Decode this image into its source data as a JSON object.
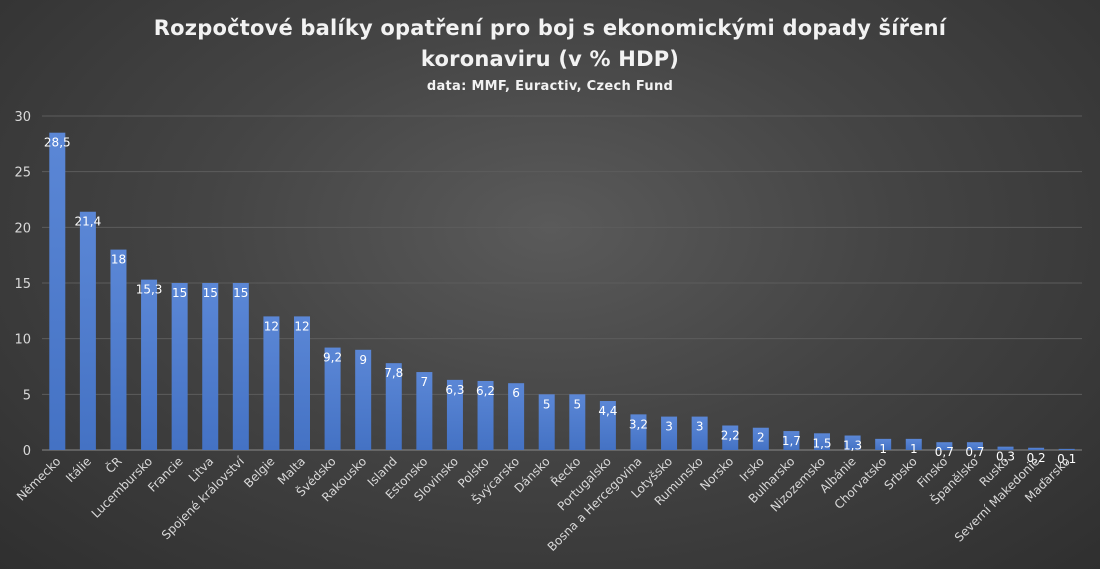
{
  "chart_data": {
    "type": "bar",
    "title_line1": "Rozpočtové balíky opatření pro boj s ekonomickými dopady šíření",
    "title_line2": "koronaviru (v % HDP)",
    "subtitle": "data: MMF, Euractiv, Czech Fund",
    "xlabel": "",
    "ylabel": "",
    "ylim": [
      0,
      30
    ],
    "yticks": [
      0,
      5,
      10,
      15,
      20,
      25,
      30
    ],
    "grid": true,
    "legend": "none",
    "bar_color": "#4472c4",
    "categories": [
      "Německo",
      "Itálie",
      "ČR",
      "Lucembursko",
      "Francie",
      "Litva",
      "Spojené království",
      "Belgie",
      "Malta",
      "Švédsko",
      "Rakousko",
      "Island",
      "Estonsko",
      "Slovinsko",
      "Polsko",
      "Švýcarsko",
      "Dánsko",
      "Řecko",
      "Portugalsko",
      "Bosna a Hercegovina",
      "Lotyšsko",
      "Rumunsko",
      "Norsko",
      "Irsko",
      "Bulharsko",
      "Nizozemsko",
      "Albánie",
      "Chorvatsko",
      "Srbsko",
      "Finsko",
      "Španělsko",
      "Rusko",
      "Severní Makedonie",
      "Maďarsko"
    ],
    "values": [
      28.5,
      21.4,
      18,
      15.3,
      15,
      15,
      15,
      12,
      12,
      9.2,
      9,
      7.8,
      7,
      6.3,
      6.2,
      6,
      5,
      5,
      4.4,
      3.2,
      3,
      3,
      2.2,
      2,
      1.7,
      1.5,
      1.3,
      1,
      1,
      0.7,
      0.7,
      0.3,
      0.2,
      0.1
    ],
    "data_labels": [
      "28,5",
      "21,4",
      "18",
      "15,3",
      "15",
      "15",
      "15",
      "12",
      "12",
      "9,2",
      "9",
      "7,8",
      "7",
      "6,3",
      "6,2",
      "6",
      "5",
      "5",
      "4,4",
      "3,2",
      "3",
      "3",
      "2,2",
      "2",
      "1,7",
      "1,5",
      "1,3",
      "1",
      "1",
      "0,7",
      "0,7",
      "0,3",
      "0,2",
      "0,1"
    ]
  }
}
